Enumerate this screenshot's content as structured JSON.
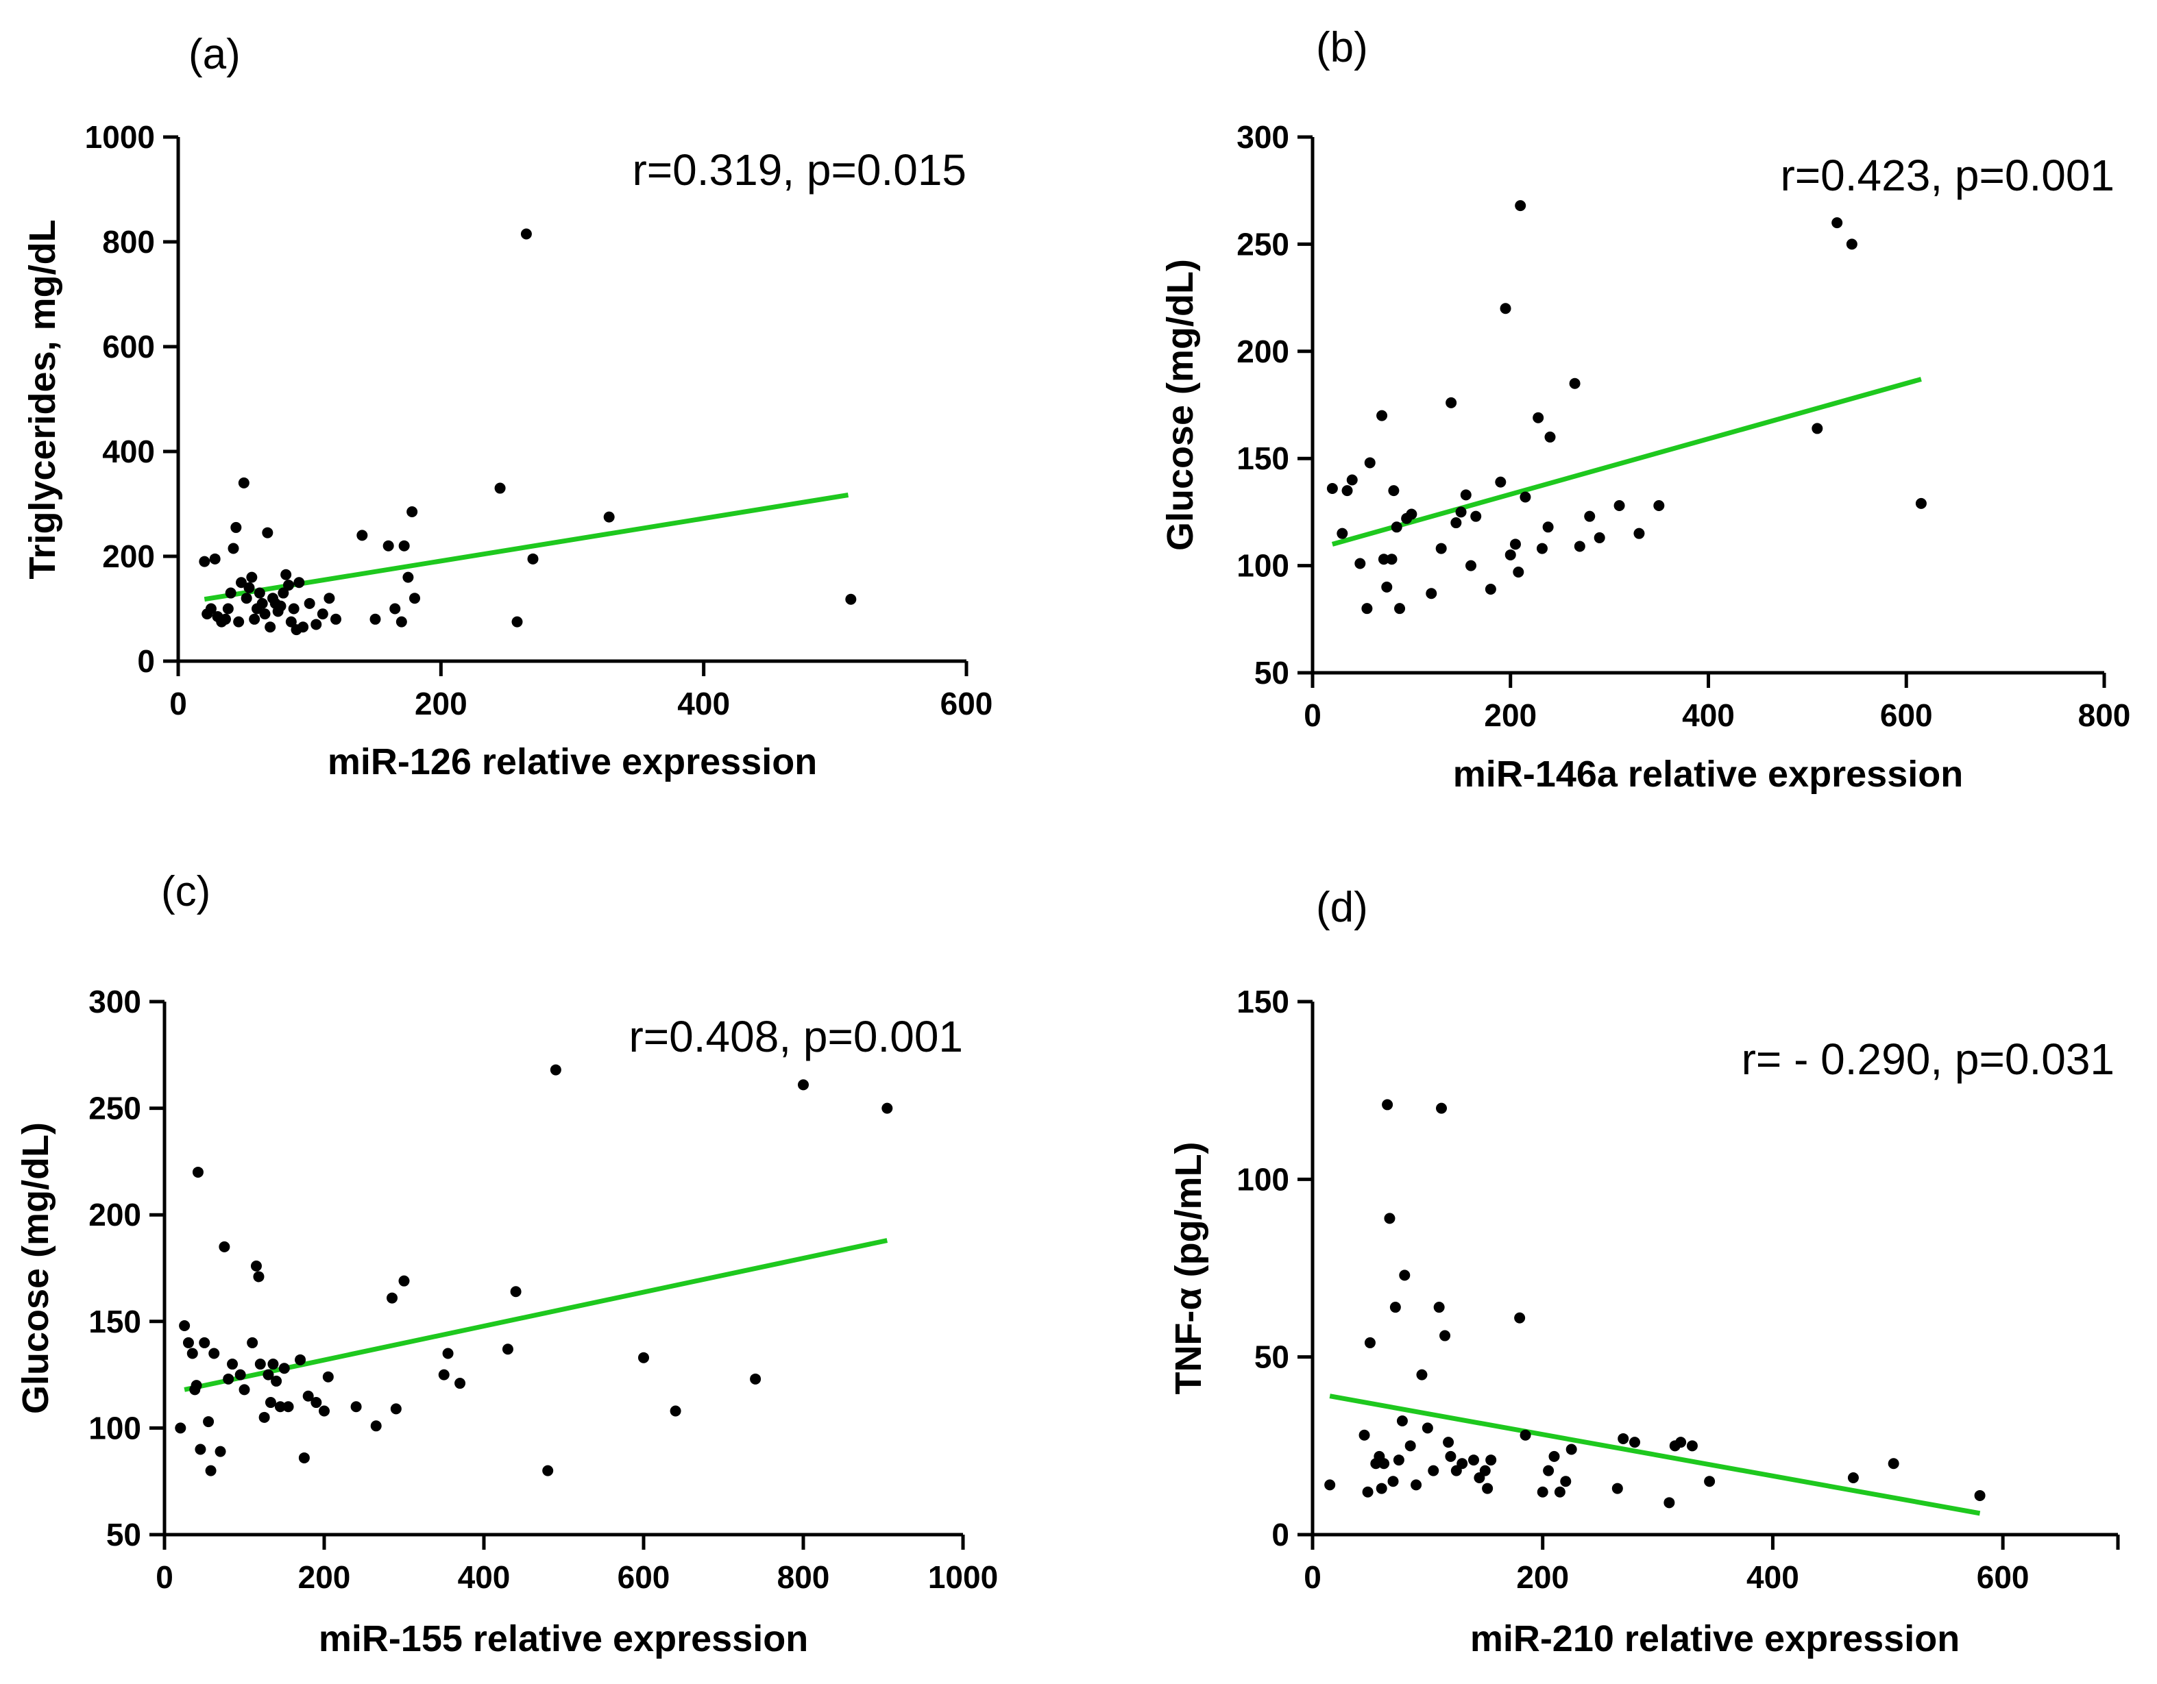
{
  "chart_data": [
    {
      "type": "scatter",
      "panel_label": "(a)",
      "annotation": "r=0.319, p=0.015",
      "xlabel": "miR-126 relative expression",
      "ylabel": "Triglycerides, mg/dL",
      "xlim": [
        0,
        600
      ],
      "ylim": [
        0,
        1000
      ],
      "xticks": [
        "0",
        "200",
        "400",
        "600"
      ],
      "yticks": [
        "0",
        "200",
        "400",
        "600",
        "800",
        "1000"
      ],
      "trendline_color": "#1ec81e",
      "trendline": [
        [
          20,
          118
        ],
        [
          510,
          317
        ]
      ],
      "points": [
        [
          20,
          190
        ],
        [
          22,
          90
        ],
        [
          25,
          100
        ],
        [
          28,
          195
        ],
        [
          30,
          85
        ],
        [
          33,
          75
        ],
        [
          36,
          80
        ],
        [
          38,
          100
        ],
        [
          40,
          130
        ],
        [
          42,
          215
        ],
        [
          44,
          255
        ],
        [
          46,
          75
        ],
        [
          48,
          150
        ],
        [
          50,
          340
        ],
        [
          52,
          120
        ],
        [
          54,
          140
        ],
        [
          56,
          160
        ],
        [
          58,
          80
        ],
        [
          60,
          100
        ],
        [
          62,
          130
        ],
        [
          64,
          110
        ],
        [
          66,
          90
        ],
        [
          68,
          245
        ],
        [
          70,
          65
        ],
        [
          72,
          120
        ],
        [
          74,
          110
        ],
        [
          76,
          95
        ],
        [
          78,
          105
        ],
        [
          80,
          130
        ],
        [
          82,
          165
        ],
        [
          84,
          145
        ],
        [
          86,
          75
        ],
        [
          88,
          100
        ],
        [
          90,
          60
        ],
        [
          92,
          150
        ],
        [
          95,
          65
        ],
        [
          100,
          110
        ],
        [
          105,
          70
        ],
        [
          110,
          90
        ],
        [
          115,
          120
        ],
        [
          120,
          80
        ],
        [
          140,
          240
        ],
        [
          150,
          80
        ],
        [
          160,
          220
        ],
        [
          165,
          100
        ],
        [
          170,
          75
        ],
        [
          172,
          220
        ],
        [
          175,
          160
        ],
        [
          178,
          285
        ],
        [
          180,
          120
        ],
        [
          245,
          330
        ],
        [
          258,
          75
        ],
        [
          265,
          815
        ],
        [
          270,
          195
        ],
        [
          328,
          275
        ],
        [
          512,
          118
        ]
      ]
    },
    {
      "type": "scatter",
      "panel_label": "(b)",
      "annotation": "r=0.423, p=0.001",
      "xlabel": "miR-146a relative expression",
      "ylabel": "Glucose (mg/dL)",
      "xlim": [
        0,
        800
      ],
      "ylim": [
        50,
        300
      ],
      "xticks": [
        "0",
        "200",
        "400",
        "600",
        "800"
      ],
      "yticks": [
        "50",
        "100",
        "150",
        "200",
        "250",
        "300"
      ],
      "trendline_color": "#1ec81e",
      "trendline": [
        [
          20,
          110
        ],
        [
          615,
          187
        ]
      ],
      "points": [
        [
          20,
          136
        ],
        [
          30,
          115
        ],
        [
          35,
          135
        ],
        [
          40,
          140
        ],
        [
          48,
          101
        ],
        [
          55,
          80
        ],
        [
          58,
          148
        ],
        [
          70,
          170
        ],
        [
          72,
          103
        ],
        [
          75,
          90
        ],
        [
          80,
          103
        ],
        [
          82,
          135
        ],
        [
          85,
          118
        ],
        [
          88,
          80
        ],
        [
          95,
          122
        ],
        [
          100,
          124
        ],
        [
          120,
          87
        ],
        [
          130,
          108
        ],
        [
          140,
          176
        ],
        [
          145,
          120
        ],
        [
          150,
          125
        ],
        [
          155,
          133
        ],
        [
          160,
          100
        ],
        [
          165,
          123
        ],
        [
          180,
          89
        ],
        [
          190,
          139
        ],
        [
          195,
          220
        ],
        [
          200,
          105
        ],
        [
          205,
          110
        ],
        [
          208,
          97
        ],
        [
          210,
          268
        ],
        [
          215,
          132
        ],
        [
          228,
          169
        ],
        [
          232,
          108
        ],
        [
          238,
          118
        ],
        [
          240,
          160
        ],
        [
          265,
          185
        ],
        [
          270,
          109
        ],
        [
          280,
          123
        ],
        [
          290,
          113
        ],
        [
          310,
          128
        ],
        [
          330,
          115
        ],
        [
          350,
          128
        ],
        [
          530,
          260
        ],
        [
          545,
          250
        ],
        [
          510,
          164
        ],
        [
          615,
          129
        ]
      ]
    },
    {
      "type": "scatter",
      "panel_label": "(c)",
      "annotation": "r=0.408, p=0.001",
      "xlabel": "miR-155 relative expression",
      "ylabel": "Glucose (mg/dL)",
      "xlim": [
        0,
        1000
      ],
      "ylim": [
        50,
        300
      ],
      "xticks": [
        "0",
        "200",
        "400",
        "600",
        "800",
        "1000"
      ],
      "yticks": [
        "50",
        "100",
        "150",
        "200",
        "250",
        "300"
      ],
      "trendline_color": "#1ec81e",
      "trendline": [
        [
          25,
          118
        ],
        [
          905,
          188
        ]
      ],
      "points": [
        [
          20,
          100
        ],
        [
          25,
          148
        ],
        [
          30,
          140
        ],
        [
          35,
          135
        ],
        [
          38,
          118
        ],
        [
          40,
          120
        ],
        [
          42,
          220
        ],
        [
          45,
          90
        ],
        [
          50,
          140
        ],
        [
          55,
          103
        ],
        [
          58,
          80
        ],
        [
          62,
          135
        ],
        [
          70,
          89
        ],
        [
          75,
          185
        ],
        [
          80,
          123
        ],
        [
          85,
          130
        ],
        [
          95,
          125
        ],
        [
          100,
          118
        ],
        [
          110,
          140
        ],
        [
          115,
          176
        ],
        [
          118,
          171
        ],
        [
          120,
          130
        ],
        [
          125,
          105
        ],
        [
          130,
          125
        ],
        [
          133,
          112
        ],
        [
          136,
          130
        ],
        [
          140,
          122
        ],
        [
          145,
          110
        ],
        [
          150,
          128
        ],
        [
          155,
          110
        ],
        [
          170,
          132
        ],
        [
          175,
          86
        ],
        [
          180,
          115
        ],
        [
          190,
          112
        ],
        [
          200,
          108
        ],
        [
          205,
          124
        ],
        [
          240,
          110
        ],
        [
          265,
          101
        ],
        [
          285,
          161
        ],
        [
          290,
          109
        ],
        [
          300,
          169
        ],
        [
          350,
          125
        ],
        [
          355,
          135
        ],
        [
          370,
          121
        ],
        [
          430,
          137
        ],
        [
          440,
          164
        ],
        [
          480,
          80
        ],
        [
          490,
          268
        ],
        [
          600,
          133
        ],
        [
          640,
          108
        ],
        [
          740,
          123
        ],
        [
          800,
          261
        ],
        [
          905,
          250
        ]
      ]
    },
    {
      "type": "scatter",
      "panel_label": "(d)",
      "annotation": "r= - 0.290, p=0.031",
      "xlabel": "miR-210 relative expression",
      "ylabel": "TNF-α (pg/mL)",
      "xlim": [
        0,
        700
      ],
      "ylim": [
        0,
        150
      ],
      "xticks": [
        "0",
        "200",
        "400",
        "600"
      ],
      "yticks": [
        "0",
        "50",
        "100",
        "150"
      ],
      "trendline_color": "#1ec81e",
      "trendline": [
        [
          15,
          39
        ],
        [
          580,
          6
        ]
      ],
      "points": [
        [
          15,
          14
        ],
        [
          45,
          28
        ],
        [
          48,
          12
        ],
        [
          50,
          54
        ],
        [
          55,
          20
        ],
        [
          58,
          22
        ],
        [
          60,
          13
        ],
        [
          62,
          20
        ],
        [
          65,
          121
        ],
        [
          67,
          89
        ],
        [
          70,
          15
        ],
        [
          72,
          64
        ],
        [
          75,
          21
        ],
        [
          78,
          32
        ],
        [
          80,
          73
        ],
        [
          85,
          25
        ],
        [
          90,
          14
        ],
        [
          95,
          45
        ],
        [
          100,
          30
        ],
        [
          105,
          18
        ],
        [
          110,
          64
        ],
        [
          112,
          120
        ],
        [
          115,
          56
        ],
        [
          118,
          26
        ],
        [
          120,
          22
        ],
        [
          125,
          18
        ],
        [
          130,
          20
        ],
        [
          140,
          21
        ],
        [
          145,
          16
        ],
        [
          150,
          18
        ],
        [
          152,
          13
        ],
        [
          155,
          21
        ],
        [
          180,
          61
        ],
        [
          185,
          28
        ],
        [
          200,
          12
        ],
        [
          205,
          18
        ],
        [
          210,
          22
        ],
        [
          215,
          12
        ],
        [
          220,
          15
        ],
        [
          225,
          24
        ],
        [
          265,
          13
        ],
        [
          270,
          27
        ],
        [
          280,
          26
        ],
        [
          310,
          9
        ],
        [
          315,
          25
        ],
        [
          320,
          26
        ],
        [
          330,
          25
        ],
        [
          345,
          15
        ],
        [
          470,
          16
        ],
        [
          505,
          20
        ],
        [
          580,
          11
        ]
      ]
    }
  ]
}
